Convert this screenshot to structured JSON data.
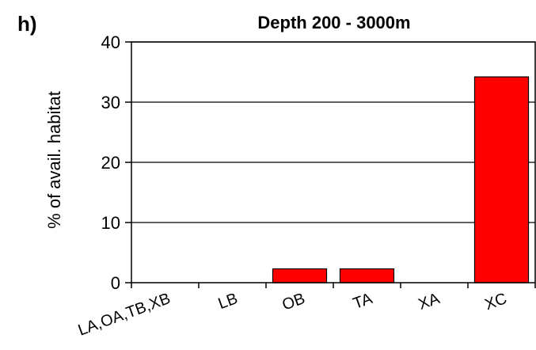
{
  "panel_label": "h)",
  "chart_data": {
    "type": "bar",
    "title": "Depth 200 - 3000m",
    "xlabel": "",
    "ylabel": "% of avail. habitat",
    "categories": [
      "LA,OA,TB,XB",
      "LB",
      "OB",
      "TA",
      "XA",
      "XC"
    ],
    "values": [
      0,
      0,
      2.3,
      2.3,
      0,
      34.2
    ],
    "ylim": [
      0,
      40
    ],
    "yticks": [
      0,
      10,
      20,
      30,
      40
    ],
    "grid": true,
    "legend": "none",
    "bar_color": "#ff0000",
    "bar_edge_color": "#000000"
  }
}
